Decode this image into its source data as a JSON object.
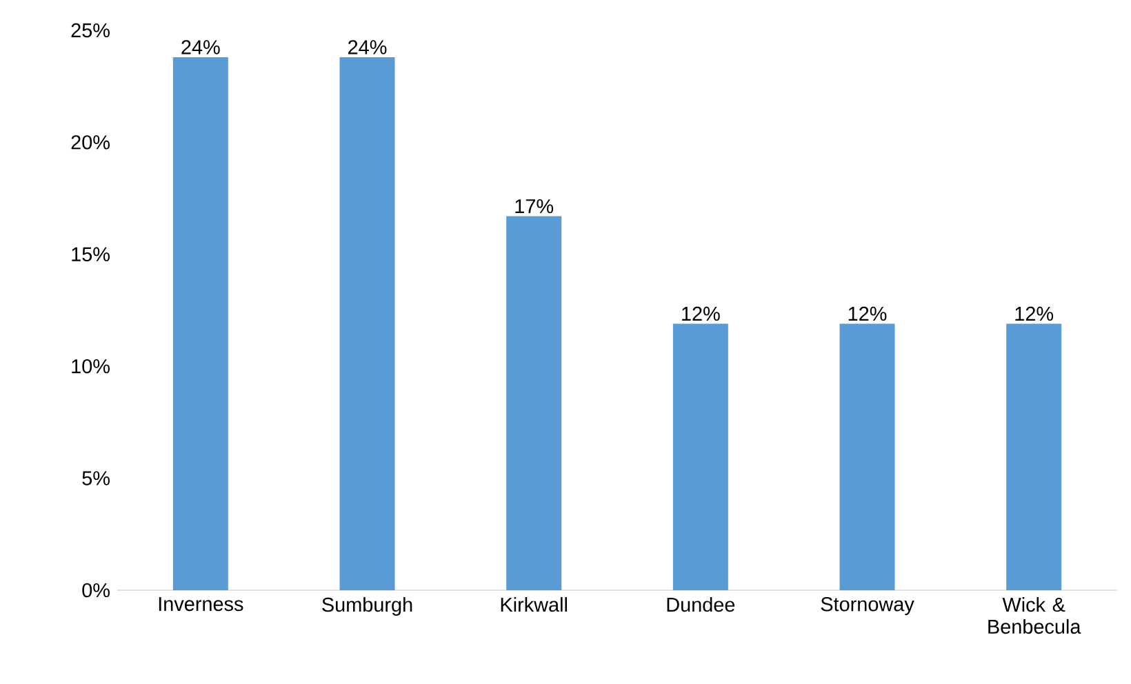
{
  "chart_data": {
    "type": "bar",
    "categories": [
      "Inverness",
      "Sumburgh",
      "Kirkwall",
      "Dundee",
      "Stornoway",
      "Wick & Benbecula"
    ],
    "values": [
      23.8,
      23.8,
      16.7,
      11.9,
      11.9,
      11.9
    ],
    "value_labels": [
      "24%",
      "24%",
      "17%",
      "12%",
      "12%",
      "12%"
    ],
    "color": "#5b9bd5",
    "ylim": [
      0,
      25
    ],
    "yticks": [
      {
        "value": 0,
        "label": "0%"
      },
      {
        "value": 5,
        "label": "5%"
      },
      {
        "value": 10,
        "label": "10%"
      },
      {
        "value": 15,
        "label": "15%"
      },
      {
        "value": 20,
        "label": "20%"
      },
      {
        "value": 25,
        "label": "25%"
      }
    ],
    "grid": false
  }
}
